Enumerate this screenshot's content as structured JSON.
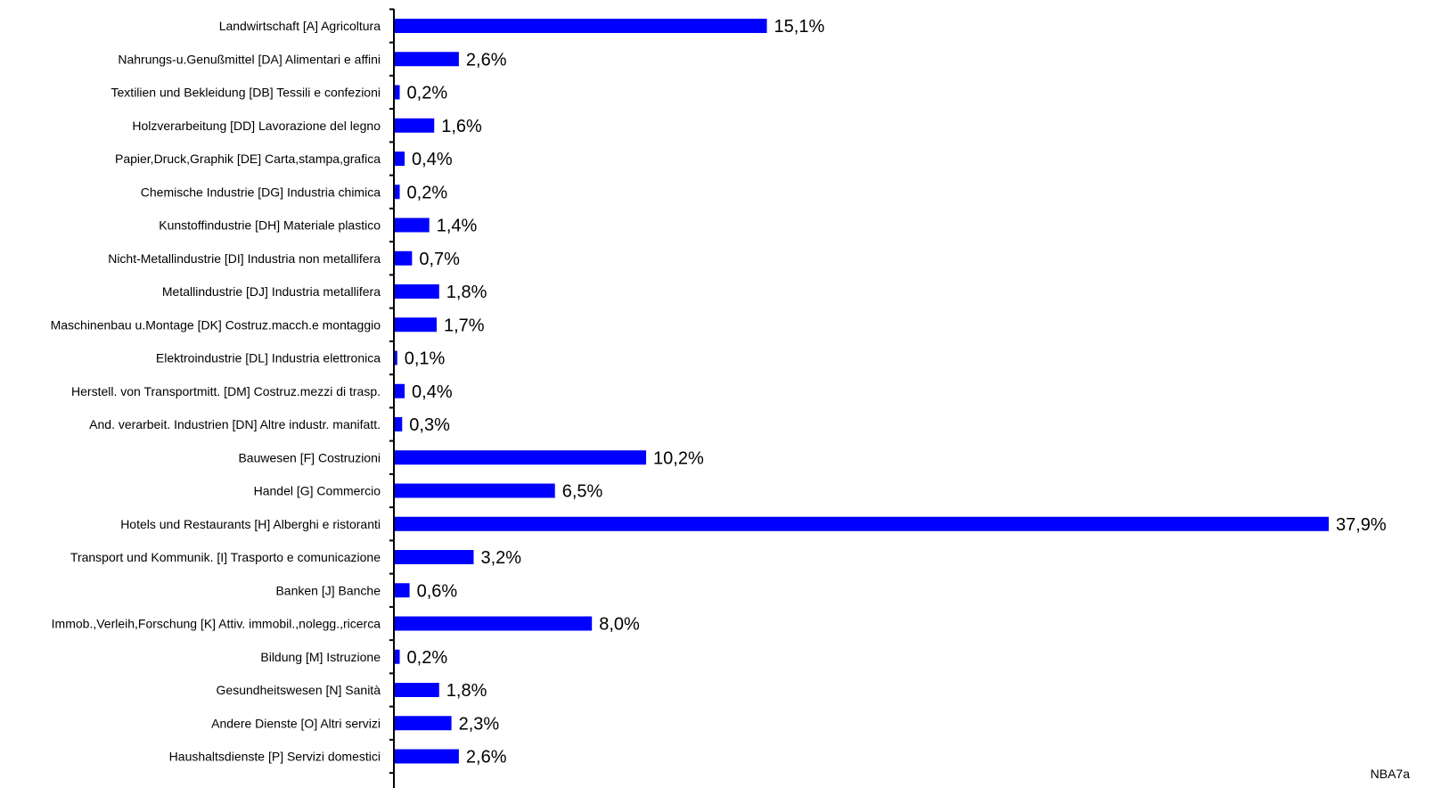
{
  "chart_data": {
    "type": "bar",
    "orientation": "horizontal",
    "categories": [
      "Landwirtschaft [A] Agricoltura",
      "Nahrungs-u.Genußmittel [DA] Alimentari e affini",
      "Textilien und Bekleidung [DB] Tessili e confezioni",
      "Holzverarbeitung [DD] Lavorazione del legno",
      "Papier,Druck,Graphik [DE] Carta,stampa,grafica",
      "Chemische Industrie [DG] Industria chimica",
      "Kunstoffindustrie [DH] Materiale plastico",
      "Nicht-Metallindustrie [DI] Industria non metallifera",
      "Metallindustrie [DJ] Industria metallifera",
      "Maschinenbau u.Montage [DK] Costruz.macch.e montaggio",
      "Elektroindustrie [DL] Industria elettronica",
      "Herstell. von Transportmitt. [DM] Costruz.mezzi di trasp.",
      "And. verarbeit. Industrien [DN] Altre industr. manifatt.",
      "Bauwesen [F] Costruzioni",
      "Handel [G] Commercio",
      "Hotels und Restaurants [H] Alberghi e ristoranti",
      "Transport und Kommunik. [I] Trasporto e comunicazione",
      "Banken [J] Banche",
      "Immob.,Verleih,Forschung [K] Attiv. immobil.,nolegg.,ricerca",
      "Bildung [M] Istruzione",
      "Gesundheitswesen [N] Sanità",
      "Andere Dienste [O] Altri servizi",
      "Haushaltsdienste [P] Servizi domestici"
    ],
    "values": [
      15.1,
      2.6,
      0.2,
      1.6,
      0.4,
      0.2,
      1.4,
      0.7,
      1.8,
      1.7,
      0.1,
      0.4,
      0.3,
      10.2,
      6.5,
      37.9,
      3.2,
      0.6,
      8.0,
      0.2,
      1.8,
      2.3,
      2.6
    ],
    "value_labels": [
      "15,1%",
      "2,6%",
      "0,2%",
      "1,6%",
      "0,4%",
      "0,2%",
      "1,4%",
      "0,7%",
      "1,8%",
      "1,7%",
      "0,1%",
      "0,4%",
      "0,3%",
      "10,2%",
      "6,5%",
      "37,9%",
      "3,2%",
      "0,6%",
      "8,0%",
      "0,2%",
      "1,8%",
      "2,3%",
      "2,6%"
    ],
    "xlim": [
      0,
      37.9
    ],
    "bar_color": "#0000ff",
    "axis_color": "#000000",
    "grid": false,
    "legend": "none"
  },
  "footer": {
    "code": "NBA7a"
  }
}
